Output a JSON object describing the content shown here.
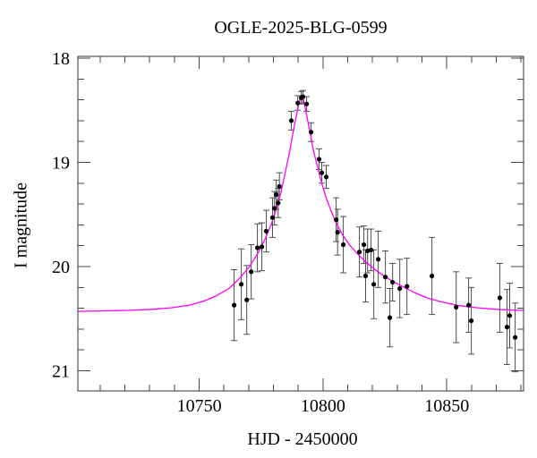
{
  "title": "OGLE-2025-BLG-0599",
  "xlabel": "HJD - 2450000",
  "ylabel": "I magnitude",
  "colors": {
    "background": "#ffffff",
    "axis": "#333333",
    "tick": "#444444",
    "model_curve": "#ff00ff",
    "data_point": "#000000",
    "error_bar": "#4d4d4d",
    "text": "#000000"
  },
  "chart_data": {
    "type": "scatter",
    "title": "OGLE-2025-BLG-0599",
    "xlabel": "HJD - 2450000",
    "ylabel": "I magnitude",
    "x_axis_note": "HJD - 2450000, increasing right",
    "y_axis_note": "I magnitude, inverted (brighter up)",
    "xlim": [
      10701,
      10881
    ],
    "ylim_mag": [
      17.983,
      21.193
    ],
    "x_major_ticks": [
      10750,
      10800,
      10850
    ],
    "x_minor_step": 10,
    "y_major_ticks": [
      18,
      19,
      20,
      21
    ],
    "y_minor_step": 0.2,
    "grid": false,
    "legend": false,
    "points_format": [
      "hjd_minus_2450000",
      "I_mag",
      "mag_error"
    ],
    "points": [
      [
        10764.1,
        20.37,
        0.34
      ],
      [
        10767.0,
        20.17,
        0.34
      ],
      [
        10769.2,
        20.32,
        0.33
      ],
      [
        10771.0,
        20.05,
        0.26
      ],
      [
        10773.5,
        19.82,
        0.23
      ],
      [
        10775.3,
        19.81,
        0.23
      ],
      [
        10777.1,
        19.66,
        0.2
      ],
      [
        10779.6,
        19.53,
        0.19
      ],
      [
        10780.4,
        19.44,
        0.16
      ],
      [
        10781.1,
        19.31,
        0.14
      ],
      [
        10781.9,
        19.39,
        0.14
      ],
      [
        10782.4,
        19.23,
        0.13
      ],
      [
        10787.2,
        18.6,
        0.09
      ],
      [
        10789.8,
        18.43,
        0.07
      ],
      [
        10791.2,
        18.38,
        0.06
      ],
      [
        10791.9,
        18.37,
        0.06
      ],
      [
        10793.4,
        18.44,
        0.07
      ],
      [
        10795.2,
        18.71,
        0.09
      ],
      [
        10798.4,
        18.97,
        0.1
      ],
      [
        10799.5,
        19.1,
        0.1
      ],
      [
        10801.3,
        19.14,
        0.11
      ],
      [
        10805.3,
        19.55,
        0.21
      ],
      [
        10805.9,
        19.67,
        0.22
      ],
      [
        10808.2,
        19.79,
        0.27
      ],
      [
        10814.7,
        19.86,
        0.24
      ],
      [
        10816.5,
        19.79,
        0.18
      ],
      [
        10817.2,
        20.09,
        0.25
      ],
      [
        10818.0,
        19.85,
        0.21
      ],
      [
        10819.4,
        19.84,
        0.2
      ],
      [
        10820.5,
        20.17,
        0.33
      ],
      [
        10822.3,
        19.93,
        0.27
      ],
      [
        10825.2,
        20.1,
        0.25
      ],
      [
        10827.0,
        20.49,
        0.28
      ],
      [
        10828.1,
        20.15,
        0.18
      ],
      [
        10831.0,
        20.21,
        0.28
      ],
      [
        10833.9,
        20.19,
        0.27
      ],
      [
        10844.0,
        20.09,
        0.37
      ],
      [
        10853.8,
        20.39,
        0.34
      ],
      [
        10858.8,
        20.37,
        0.26
      ],
      [
        10859.9,
        20.52,
        0.32
      ],
      [
        10871.4,
        20.3,
        0.33
      ],
      [
        10874.3,
        20.58,
        0.36
      ],
      [
        10875.4,
        20.47,
        0.31
      ],
      [
        10877.6,
        20.68,
        0.33
      ]
    ],
    "model_curve_format": [
      "hjd_minus_2450000",
      "I_mag"
    ],
    "model_curve": [
      [
        10701,
        20.43
      ],
      [
        10712,
        20.425
      ],
      [
        10722,
        20.42
      ],
      [
        10731,
        20.41
      ],
      [
        10739,
        20.395
      ],
      [
        10746,
        20.37
      ],
      [
        10752,
        20.33
      ],
      [
        10757,
        20.28
      ],
      [
        10762,
        20.21
      ],
      [
        10766,
        20.12
      ],
      [
        10770,
        20.01
      ],
      [
        10773.5,
        19.88
      ],
      [
        10776.5,
        19.74
      ],
      [
        10779,
        19.6
      ],
      [
        10781,
        19.46
      ],
      [
        10783,
        19.29
      ],
      [
        10785,
        19.07
      ],
      [
        10786.5,
        18.9
      ],
      [
        10788,
        18.7
      ],
      [
        10789.5,
        18.52
      ],
      [
        10790.5,
        18.41
      ],
      [
        10791.2,
        18.36
      ],
      [
        10792,
        18.39
      ],
      [
        10793,
        18.5
      ],
      [
        10794.5,
        18.68
      ],
      [
        10796,
        18.87
      ],
      [
        10797.5,
        19.02
      ],
      [
        10799,
        19.16
      ],
      [
        10801,
        19.32
      ],
      [
        10803,
        19.45
      ],
      [
        10805.5,
        19.59
      ],
      [
        10808,
        19.7
      ],
      [
        10811,
        19.8
      ],
      [
        10814,
        19.88
      ],
      [
        10817,
        19.95
      ],
      [
        10820.5,
        20.02
      ],
      [
        10824,
        20.08
      ],
      [
        10828,
        20.14
      ],
      [
        10832,
        20.19
      ],
      [
        10837,
        20.25
      ],
      [
        10842,
        20.3
      ],
      [
        10848,
        20.34
      ],
      [
        10855,
        20.375
      ],
      [
        10862,
        20.395
      ],
      [
        10870,
        20.41
      ],
      [
        10878,
        20.42
      ],
      [
        10881,
        20.42
      ]
    ],
    "peak": {
      "t0": 10791.2,
      "peak_mag": 18.36,
      "baseline_mag": 20.43
    }
  }
}
